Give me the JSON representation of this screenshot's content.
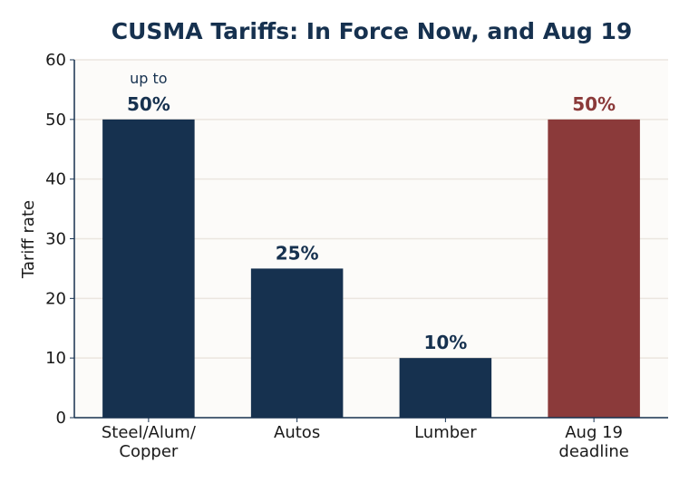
{
  "chart_data": {
    "type": "bar",
    "title": "CUSMA Tariffs: In Force Now, and Aug 19",
    "xlabel": "",
    "ylabel": "Tariff rate",
    "ylim": [
      0,
      60
    ],
    "yticks": [
      "0",
      "10",
      "20",
      "30",
      "40",
      "50",
      "60"
    ],
    "grid": true,
    "categories": [
      [
        "Steel/Alum/",
        "Copper"
      ],
      [
        "Autos"
      ],
      [
        "Lumber"
      ],
      [
        "Aug 19",
        "deadline"
      ]
    ],
    "values": [
      50,
      25,
      10,
      50
    ],
    "data_labels": [
      "50%",
      "25%",
      "10%",
      "50%"
    ],
    "annotations": [
      "up to",
      "",
      "",
      ""
    ],
    "colors": [
      "#16314f",
      "#16314f",
      "#16314f",
      "#8b3a3a"
    ],
    "label_colors": [
      "#16314f",
      "#16314f",
      "#16314f",
      "#8b3a3a"
    ],
    "plot_background": "#fcfbf9",
    "grid_color": "#ebe6df",
    "axis_color": "#16314f"
  }
}
